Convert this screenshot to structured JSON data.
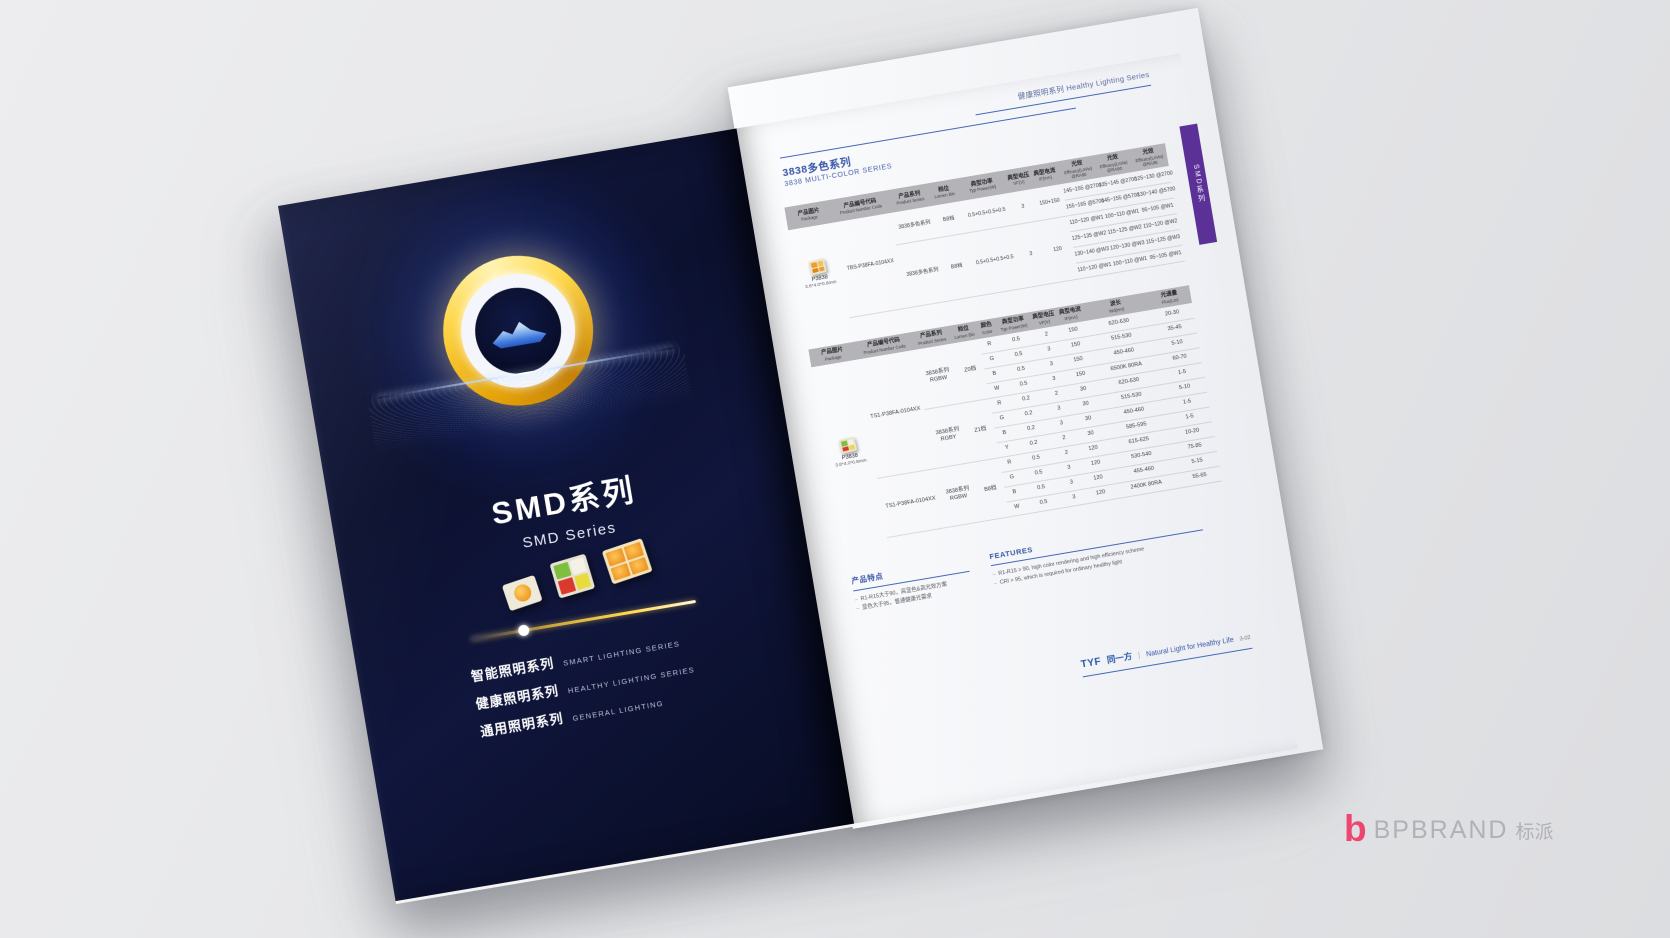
{
  "doc_header": {
    "zh": "健康照明系列",
    "en": "Healthy Lighting Series"
  },
  "left_page": {
    "title_zh": "SMD系列",
    "title_en": "SMD Series",
    "series": [
      {
        "zh": "智能照明系列",
        "en": "SMART LIGHTING SERIES"
      },
      {
        "zh": "健康照明系列",
        "en": "HEALTHY LIGHTING SERIES"
      },
      {
        "zh": "通用照明系列",
        "en": "GENERAL LIGHTING"
      }
    ]
  },
  "right_page": {
    "side_tab": "SMD系列",
    "section_title_zh": "3838多色系列",
    "section_title_en": "3838 MULTI-COLOR SERIES",
    "table1": {
      "headers": [
        [
          "产品图片",
          "Package"
        ],
        [
          "产品编号代码",
          "Product Number Code"
        ],
        [
          "产品系列",
          "Product Series"
        ],
        [
          "档位",
          "Lumen Bin"
        ],
        [
          "典型功率",
          "Typ Power(W)"
        ],
        [
          "典型电压",
          "VF(V)"
        ],
        [
          "典型电流",
          "IF(mA)"
        ],
        [
          "光效",
          "Efficacy(Lm/w)",
          "@RA80"
        ],
        [
          "光效",
          "Efficacy(Lm/w)",
          "@RA90"
        ],
        [
          "光效",
          "Efficacy(Lm/w)",
          "@RA95"
        ]
      ],
      "rows": [
        [
          {
            "type": "pkg",
            "rs": 6,
            "name": "P3838",
            "size": "3.8*4.0*0.8mm",
            "icon": "quad-orange"
          },
          {
            "t": "TBS-P38FA-0104XX",
            "rs": 6
          },
          {
            "t": "3838多色系列",
            "rs": 2
          },
          {
            "t": "B8档",
            "rs": 2
          },
          {
            "t": "0.5+0.5+0.5+0.5",
            "rs": 2
          },
          {
            "t": "3",
            "rs": 2
          },
          {
            "t": "150+150",
            "rs": 2
          },
          {
            "t": "145~155 @2700"
          },
          {
            "t": "135~145 @2700"
          },
          {
            "t": "125~130 @2700"
          }
        ],
        [
          {
            "t": "155~165 @5700"
          },
          {
            "t": "145~155 @5700"
          },
          {
            "t": "130~140 @5700"
          }
        ],
        [
          {
            "t": "3838多色系列",
            "rs": 4
          },
          {
            "t": "B8档",
            "rs": 4
          },
          {
            "t": "0.5+0.5+0.5+0.5",
            "rs": 4
          },
          {
            "t": "3",
            "rs": 4
          },
          {
            "t": "120",
            "rs": 4
          },
          {
            "t": "110~120 @W1"
          },
          {
            "t": "100~110 @W1"
          },
          {
            "t": "95~105 @W1"
          }
        ],
        [
          {
            "t": "125~135 @W2"
          },
          {
            "t": "115~125 @W2"
          },
          {
            "t": "110~120 @W2"
          }
        ],
        [
          {
            "t": "130~140 @W3"
          },
          {
            "t": "120~130 @W3"
          },
          {
            "t": "115~125 @W3"
          }
        ],
        [
          {
            "t": "110~120 @W1"
          },
          {
            "t": "100~110 @W1"
          },
          {
            "t": "95~105 @W1"
          }
        ]
      ]
    },
    "table2": {
      "headers": [
        [
          "产品图片",
          "Package"
        ],
        [
          "产品编号代码",
          "Product Number Code"
        ],
        [
          "产品系列",
          "Product Series"
        ],
        [
          "档位",
          "Lumen Bin"
        ],
        [
          "颜色",
          "Color"
        ],
        [
          "典型功率",
          "Typ Power(W)"
        ],
        [
          "典型电压",
          "VF(V)"
        ],
        [
          "典型电流",
          "IF(mA)"
        ],
        [
          "波长",
          "Wd(nm)"
        ],
        [
          "光通量",
          "Flux(Lm)"
        ]
      ],
      "rows": [
        [
          {
            "type": "pkg",
            "rs": 12,
            "name": "P3838",
            "size": "3.8*4.0*0.8mm",
            "icon": "quad-rgbw"
          },
          {
            "t": "TS1-P38FA-0104XX",
            "rs": 8
          },
          {
            "lines": [
              "3838系列",
              "RGBW"
            ],
            "rs": 4
          },
          {
            "t": "Z0档",
            "rs": 4
          },
          {
            "t": "R"
          },
          {
            "t": "0.5"
          },
          {
            "t": "2"
          },
          {
            "t": "150"
          },
          {
            "t": "620-630"
          },
          {
            "t": "20-30"
          }
        ],
        [
          {
            "t": "G"
          },
          {
            "t": "0.5"
          },
          {
            "t": "3"
          },
          {
            "t": "150"
          },
          {
            "t": "515-530"
          },
          {
            "t": "35-45"
          }
        ],
        [
          {
            "t": "B"
          },
          {
            "t": "0.5"
          },
          {
            "t": "3"
          },
          {
            "t": "150"
          },
          {
            "t": "450-460"
          },
          {
            "t": "5-10"
          }
        ],
        [
          {
            "t": "W"
          },
          {
            "t": "0.5"
          },
          {
            "t": "3"
          },
          {
            "t": "150"
          },
          {
            "t": "6500K 80RA"
          },
          {
            "t": "60-70"
          }
        ],
        [
          {
            "lines": [
              "3838系列",
              "RGBY"
            ],
            "rs": 4
          },
          {
            "t": "Z1档",
            "rs": 4
          },
          {
            "t": "R"
          },
          {
            "t": "0.2"
          },
          {
            "t": "2"
          },
          {
            "t": "30"
          },
          {
            "t": "620-630"
          },
          {
            "t": "1-5"
          }
        ],
        [
          {
            "t": "G"
          },
          {
            "t": "0.2"
          },
          {
            "t": "3"
          },
          {
            "t": "30"
          },
          {
            "t": "515-530"
          },
          {
            "t": "5-10"
          }
        ],
        [
          {
            "t": "B"
          },
          {
            "t": "0.2"
          },
          {
            "t": "3"
          },
          {
            "t": "30"
          },
          {
            "t": "450-460"
          },
          {
            "t": "1-5"
          }
        ],
        [
          {
            "t": "Y"
          },
          {
            "t": "0.2"
          },
          {
            "t": "2"
          },
          {
            "t": "30"
          },
          {
            "t": "585-595"
          },
          {
            "t": "1-5"
          }
        ],
        [
          {
            "t": "TS1-P38FA-0104XX",
            "rs": 4
          },
          {
            "lines": [
              "3838系列",
              "RGBW"
            ],
            "rs": 4
          },
          {
            "t": "B8档",
            "rs": 4
          },
          {
            "t": "R"
          },
          {
            "t": "0.5"
          },
          {
            "t": "2"
          },
          {
            "t": "120"
          },
          {
            "t": "615-625"
          },
          {
            "t": "10-20"
          }
        ],
        [
          {
            "t": "G"
          },
          {
            "t": "0.5"
          },
          {
            "t": "3"
          },
          {
            "t": "120"
          },
          {
            "t": "530-540"
          },
          {
            "t": "75-85"
          }
        ],
        [
          {
            "t": "B"
          },
          {
            "t": "0.5"
          },
          {
            "t": "3"
          },
          {
            "t": "120"
          },
          {
            "t": "455-460"
          },
          {
            "t": "5-15"
          }
        ],
        [
          {
            "t": "W"
          },
          {
            "t": "0.5"
          },
          {
            "t": "3"
          },
          {
            "t": "120"
          },
          {
            "t": "2400K 80RA"
          },
          {
            "t": "55-65"
          }
        ]
      ]
    },
    "features_zh": {
      "title": "产品特点",
      "items": [
        "R1-R15大于90，高显色&高光效方案",
        "显色大于95，普通健康光需求"
      ]
    },
    "features_en": {
      "title": "FEATURES",
      "items": [
        "R1-R15 > 90, high color rendering and high efficiency scheme",
        "CRI > 95, which is required for ordinary healthy light"
      ]
    },
    "footer": {
      "brand_en": "TYF",
      "brand_zh": "同一方",
      "divider": "|",
      "tagline": "Natural Light for Healthy Life",
      "page_no": "3-02"
    }
  },
  "watermark": {
    "initial": "b",
    "brand": "BPBRAND",
    "brand_zh": "标派"
  },
  "colors": {
    "accent_blue": "#3a57a7",
    "tab_purple": "#5b3198",
    "brand_pink": "#ee2d5e",
    "gold_ring": "#ffd84d"
  }
}
